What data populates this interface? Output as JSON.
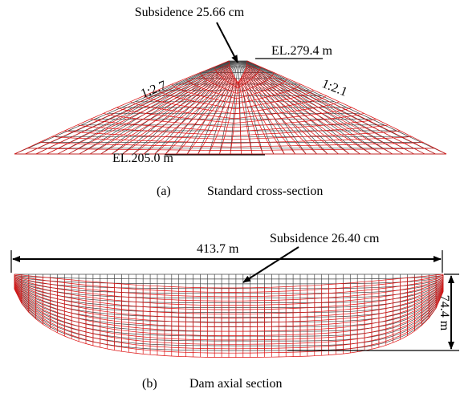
{
  "panel_a": {
    "subsidence": "Subsidence 25.66 cm",
    "crest_elevation": "EL.279.4 m",
    "upstream_slope": "1:2.7",
    "downstream_slope": "1:2.1",
    "base_elevation": "EL.205.0 m",
    "caption_label": "(a)",
    "caption": "Standard cross-section"
  },
  "panel_b": {
    "length": "413.7 m",
    "subsidence": "Subsidence 26.40 cm",
    "height": "74.4 m",
    "caption_label": "(b)",
    "caption": "Dam axial section"
  }
}
